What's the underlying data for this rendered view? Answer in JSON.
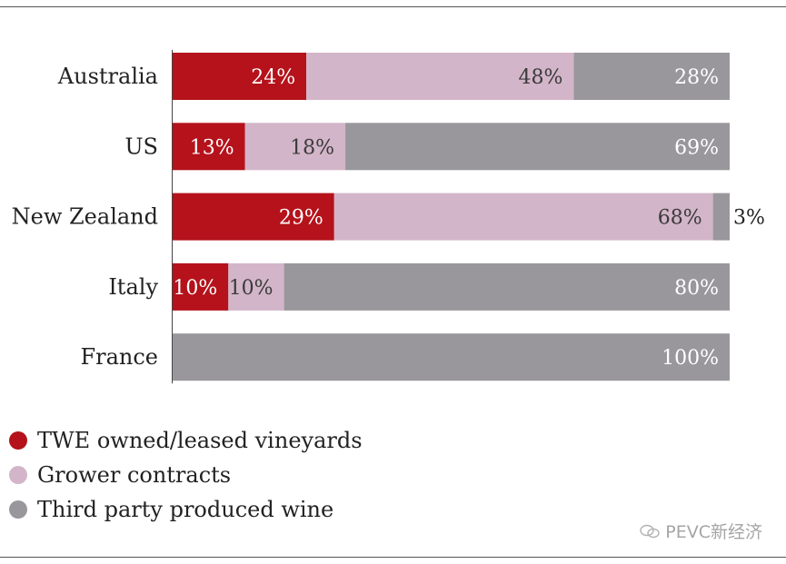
{
  "chart_data": {
    "type": "bar",
    "orientation": "horizontal",
    "stacked": true,
    "categories": [
      "Australia",
      "US",
      "New Zealand",
      "Italy",
      "France"
    ],
    "series": [
      {
        "name": "TWE owned/leased vineyards",
        "color": "#b5121b",
        "values": [
          24,
          13,
          29,
          10,
          0
        ]
      },
      {
        "name": "Grower contracts",
        "color": "#d3b5c9",
        "values": [
          48,
          18,
          68,
          10,
          0
        ]
      },
      {
        "name": "Third party produced wine",
        "color": "#99979c",
        "values": [
          28,
          69,
          3,
          80,
          100
        ]
      }
    ],
    "labels": [
      [
        "24%",
        "48%",
        "28%"
      ],
      [
        "13%",
        "18%",
        "69%"
      ],
      [
        "29%",
        "68%",
        "3%"
      ],
      [
        "10%",
        "10%",
        "80%"
      ],
      [
        "",
        "",
        "100%"
      ]
    ],
    "xlim": [
      0,
      100
    ],
    "legend_position": "bottom-left"
  },
  "legend": [
    {
      "label": "TWE owned/leased vineyards",
      "color": "#b5121b"
    },
    {
      "label": "Grower contracts",
      "color": "#d3b5c9"
    },
    {
      "label": "Third party produced wine",
      "color": "#99979c"
    }
  ],
  "watermark": {
    "text": "PEVC新经济",
    "icon": "wechat-icon"
  }
}
